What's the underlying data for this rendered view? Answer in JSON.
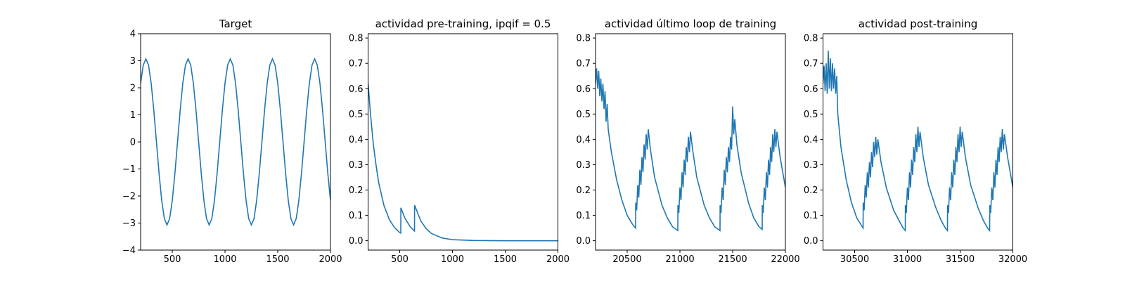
{
  "chart_data": [
    {
      "type": "line",
      "title": "Target",
      "color": "#1f77b4",
      "xlim": [
        200,
        2000
      ],
      "ylim": [
        -4,
        4
      ],
      "xticks": [
        500,
        1000,
        1500,
        2000
      ],
      "yticks": [
        {
          "value": -4,
          "label": "−4"
        },
        {
          "value": -3,
          "label": "−3"
        },
        {
          "value": -2,
          "label": "−2"
        },
        {
          "value": -1,
          "label": "−1"
        },
        0,
        1,
        2,
        3,
        4
      ],
      "x": [
        200,
        225,
        250,
        275,
        300,
        325,
        350,
        375,
        400,
        425,
        450,
        475,
        500,
        525,
        550,
        575,
        600,
        625,
        650,
        675,
        700,
        725,
        750,
        775,
        800,
        825,
        850,
        875,
        900,
        925,
        950,
        975,
        1000,
        1025,
        1050,
        1075,
        1100,
        1125,
        1150,
        1175,
        1200,
        1225,
        1250,
        1275,
        1300,
        1325,
        1350,
        1375,
        1400,
        1425,
        1450,
        1475,
        1500,
        1525,
        1550,
        1575,
        1600,
        1625,
        1650,
        1675,
        1700,
        1725,
        1750,
        1775,
        1800,
        1825,
        1850,
        1875,
        1900,
        1925,
        1950,
        1975,
        2000
      ],
      "values": [
        2.17,
        2.84,
        3.07,
        2.84,
        2.17,
        1.17,
        0,
        -1.17,
        -2.17,
        -2.84,
        -3.07,
        -2.84,
        -2.17,
        -1.17,
        0,
        1.17,
        2.17,
        2.84,
        3.07,
        2.84,
        2.17,
        1.17,
        0,
        -1.17,
        -2.17,
        -2.84,
        -3.07,
        -2.84,
        -2.17,
        -1.17,
        0,
        1.17,
        2.17,
        2.84,
        3.07,
        2.84,
        2.17,
        1.17,
        0,
        -1.17,
        -2.17,
        -2.84,
        -3.07,
        -2.84,
        -2.17,
        -1.17,
        0,
        1.17,
        2.17,
        2.84,
        3.07,
        2.84,
        2.17,
        1.17,
        0,
        -1.17,
        -2.17,
        -2.84,
        -3.07,
        -2.84,
        -2.17,
        -1.17,
        0,
        1.17,
        2.17,
        2.84,
        3.07,
        2.84,
        2.17,
        1.17,
        0,
        -1.17,
        -2.17
      ]
    },
    {
      "type": "line",
      "title": "actividad pre-training, ipqif = 0.5",
      "color": "#1f77b4",
      "xlim": [
        200,
        2000
      ],
      "ylim": [
        -0.037,
        0.817
      ],
      "xticks": [
        500,
        1000,
        1500,
        2000
      ],
      "yticks": [
        {
          "value": 0,
          "label": "0.0"
        },
        0.1,
        0.2,
        0.3,
        0.4,
        0.5,
        0.6,
        0.7,
        0.8
      ],
      "x": [
        200,
        225,
        250,
        275,
        300,
        350,
        400,
        450,
        500,
        510,
        511,
        550,
        600,
        640,
        641,
        700,
        750,
        800,
        900,
        1000,
        1200,
        1500,
        2000
      ],
      "values": [
        0.62,
        0.49,
        0.38,
        0.3,
        0.23,
        0.14,
        0.085,
        0.052,
        0.032,
        0.03,
        0.13,
        0.088,
        0.055,
        0.038,
        0.14,
        0.078,
        0.048,
        0.029,
        0.011,
        0.004,
        0.001,
        0,
        0
      ]
    },
    {
      "type": "line",
      "title": "actividad último loop de training",
      "color": "#1f77b4",
      "xlim": [
        20200,
        22000
      ],
      "ylim": [
        -0.037,
        0.817
      ],
      "xticks": [
        20500,
        21000,
        21500,
        22000
      ],
      "yticks": [
        {
          "value": 0,
          "label": "0.0"
        },
        0.1,
        0.2,
        0.3,
        0.4,
        0.5,
        0.6,
        0.7,
        0.8
      ],
      "x": [
        20200,
        20210,
        20220,
        20230,
        20240,
        20250,
        20260,
        20270,
        20280,
        20290,
        20300,
        20310,
        20320,
        20350,
        20400,
        20450,
        20500,
        20550,
        20580,
        20581,
        20590,
        20600,
        20610,
        20620,
        20630,
        20640,
        20650,
        20660,
        20670,
        20680,
        20690,
        20700,
        20720,
        20760,
        20830,
        20880,
        20930,
        20980,
        20981,
        20990,
        21000,
        21010,
        21020,
        21030,
        21040,
        21050,
        21060,
        21070,
        21080,
        21090,
        21100,
        21120,
        21160,
        21230,
        21280,
        21330,
        21380,
        21381,
        21390,
        21400,
        21410,
        21420,
        21430,
        21440,
        21450,
        21460,
        21470,
        21480,
        21490,
        21500,
        21510,
        21520,
        21540,
        21580,
        21650,
        21700,
        21750,
        21780,
        21781,
        21790,
        21800,
        21810,
        21820,
        21830,
        21840,
        21850,
        21860,
        21870,
        21880,
        21890,
        21900,
        21910,
        21920,
        21950,
        22000
      ],
      "values": [
        0.62,
        0.68,
        0.6,
        0.67,
        0.57,
        0.64,
        0.55,
        0.62,
        0.52,
        0.59,
        0.47,
        0.54,
        0.44,
        0.35,
        0.24,
        0.16,
        0.1,
        0.065,
        0.05,
        0.15,
        0.12,
        0.22,
        0.17,
        0.28,
        0.22,
        0.33,
        0.27,
        0.38,
        0.32,
        0.42,
        0.36,
        0.44,
        0.36,
        0.25,
        0.14,
        0.09,
        0.055,
        0.04,
        0.14,
        0.11,
        0.21,
        0.16,
        0.27,
        0.21,
        0.32,
        0.26,
        0.37,
        0.31,
        0.41,
        0.35,
        0.43,
        0.36,
        0.25,
        0.14,
        0.09,
        0.055,
        0.04,
        0.14,
        0.11,
        0.21,
        0.16,
        0.28,
        0.22,
        0.33,
        0.27,
        0.37,
        0.31,
        0.41,
        0.36,
        0.53,
        0.42,
        0.48,
        0.38,
        0.27,
        0.15,
        0.09,
        0.055,
        0.045,
        0.14,
        0.11,
        0.21,
        0.16,
        0.27,
        0.21,
        0.32,
        0.26,
        0.37,
        0.31,
        0.42,
        0.35,
        0.44,
        0.37,
        0.43,
        0.33,
        0.21
      ]
    },
    {
      "type": "line",
      "title": "actividad post-training",
      "color": "#1f77b4",
      "xlim": [
        30200,
        32000
      ],
      "ylim": [
        -0.037,
        0.817
      ],
      "xticks": [
        30500,
        31000,
        31500,
        32000
      ],
      "yticks": [
        {
          "value": 0,
          "label": "0.0"
        },
        0.1,
        0.2,
        0.3,
        0.4,
        0.5,
        0.6,
        0.7,
        0.8
      ],
      "x": [
        30200,
        30210,
        30220,
        30230,
        30240,
        30250,
        30260,
        30270,
        30280,
        30290,
        30300,
        30310,
        30320,
        30330,
        30340,
        30370,
        30420,
        30470,
        30520,
        30580,
        30581,
        30590,
        30600,
        30610,
        30620,
        30630,
        30640,
        30650,
        30660,
        30670,
        30680,
        30690,
        30700,
        30710,
        30720,
        30750,
        30800,
        30870,
        30920,
        30960,
        30980,
        30981,
        30990,
        31000,
        31010,
        31020,
        31030,
        31040,
        31050,
        31060,
        31070,
        31080,
        31090,
        31100,
        31110,
        31120,
        31150,
        31200,
        31270,
        31320,
        31360,
        31380,
        31381,
        31390,
        31400,
        31410,
        31420,
        31430,
        31440,
        31450,
        31460,
        31470,
        31480,
        31490,
        31500,
        31510,
        31520,
        31550,
        31600,
        31670,
        31720,
        31760,
        31780,
        31781,
        31790,
        31800,
        31810,
        31820,
        31830,
        31840,
        31850,
        31860,
        31870,
        31880,
        31890,
        31900,
        31910,
        31920,
        31950,
        32000
      ],
      "values": [
        0.62,
        0.69,
        0.59,
        0.7,
        0.58,
        0.75,
        0.6,
        0.72,
        0.59,
        0.7,
        0.6,
        0.68,
        0.58,
        0.65,
        0.5,
        0.37,
        0.24,
        0.15,
        0.09,
        0.05,
        0.15,
        0.12,
        0.22,
        0.17,
        0.27,
        0.21,
        0.31,
        0.25,
        0.35,
        0.29,
        0.39,
        0.33,
        0.41,
        0.34,
        0.4,
        0.31,
        0.21,
        0.12,
        0.08,
        0.05,
        0.04,
        0.14,
        0.11,
        0.21,
        0.16,
        0.27,
        0.21,
        0.32,
        0.26,
        0.37,
        0.31,
        0.42,
        0.35,
        0.45,
        0.37,
        0.43,
        0.33,
        0.22,
        0.13,
        0.08,
        0.05,
        0.04,
        0.14,
        0.11,
        0.21,
        0.16,
        0.27,
        0.21,
        0.32,
        0.26,
        0.37,
        0.31,
        0.42,
        0.35,
        0.45,
        0.37,
        0.43,
        0.33,
        0.22,
        0.13,
        0.08,
        0.05,
        0.04,
        0.14,
        0.11,
        0.21,
        0.16,
        0.27,
        0.21,
        0.32,
        0.26,
        0.37,
        0.31,
        0.41,
        0.35,
        0.44,
        0.36,
        0.42,
        0.33,
        0.21
      ]
    }
  ]
}
